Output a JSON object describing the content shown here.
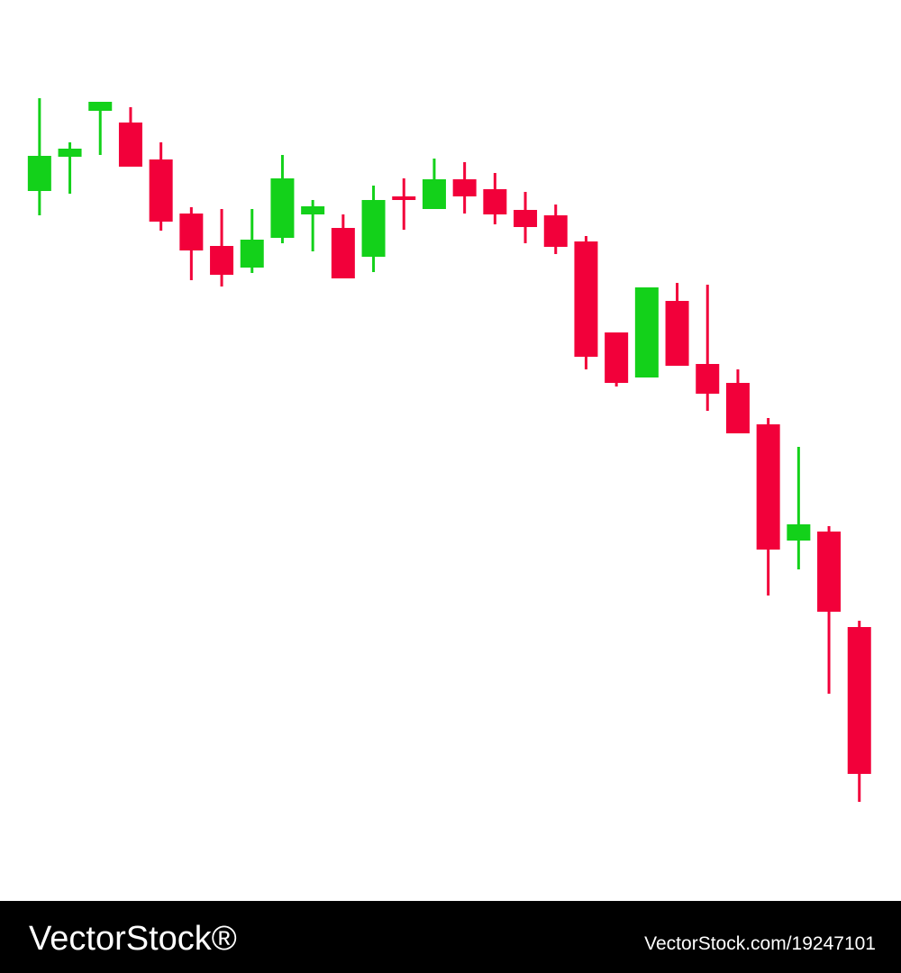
{
  "chart_data": {
    "type": "candlestick",
    "categories": [
      null,
      null,
      null,
      null,
      null,
      null,
      null,
      null,
      null,
      null,
      null,
      null,
      null,
      null,
      null,
      null,
      null,
      null,
      null,
      null,
      null,
      null,
      null,
      null,
      null,
      null,
      null,
      null
    ],
    "open": [
      788,
      826,
      877,
      864,
      823,
      763,
      727,
      703,
      736,
      762,
      747,
      715,
      782,
      768,
      801,
      790,
      767,
      761,
      732,
      631,
      581,
      666,
      596,
      575,
      529,
      400,
      410,
      304
    ],
    "high": [
      891,
      842,
      887,
      881,
      842,
      770,
      768,
      768,
      828,
      778,
      762,
      794,
      802,
      824,
      820,
      808,
      787,
      773,
      738,
      631,
      681,
      686,
      684,
      590,
      536,
      504,
      416,
      311
    ],
    "low": [
      761,
      785,
      828,
      815,
      744,
      689,
      682,
      697,
      730,
      721,
      691,
      698,
      745,
      768,
      763,
      751,
      730,
      718,
      590,
      571,
      581,
      594,
      544,
      519,
      339,
      368,
      230,
      110
    ],
    "close": [
      827,
      835,
      887,
      815,
      754,
      722,
      695,
      734,
      802,
      771,
      691,
      778,
      778,
      801,
      782,
      762,
      748,
      726,
      604,
      575,
      681,
      594,
      563,
      519,
      390,
      418,
      321,
      141
    ],
    "up_color": "#13d11a",
    "down_color": "#f2003a",
    "ylim": [
      0,
      1000
    ]
  },
  "watermark": {
    "brand": "VectorStock®",
    "url": "VectorStock.com/19247101"
  }
}
